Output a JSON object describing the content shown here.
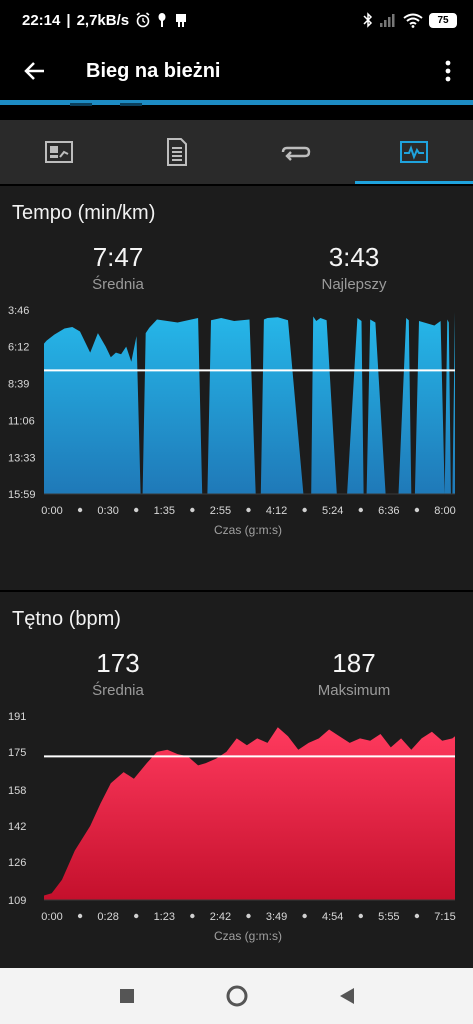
{
  "status_bar": {
    "time": "22:14",
    "net_speed": "2,7kB/s",
    "battery": "75",
    "icons": [
      "alarm-icon",
      "notification-icon",
      "garmin-icon",
      "bluetooth-icon",
      "signal-icon",
      "wifi-icon",
      "battery-icon"
    ]
  },
  "app_bar": {
    "title": "Bieg na bieżni",
    "icons": [
      "back-arrow-icon",
      "more-vert-icon"
    ]
  },
  "tabs": [
    {
      "icon": "stats-card-icon",
      "active": false
    },
    {
      "icon": "details-list-icon",
      "active": false
    },
    {
      "icon": "laps-loop-icon",
      "active": false
    },
    {
      "icon": "charts-icon",
      "active": true
    }
  ],
  "colors": {
    "accent": "#1fa3dd",
    "pace_fill_top": "#26b8ea",
    "pace_fill_bottom": "#1f79b8",
    "hr_fill_top": "#ff3a5e",
    "hr_fill_bottom": "#c4102c"
  },
  "pace": {
    "title": "Tempo (min/km)",
    "avg_value": "7:47",
    "avg_label": "Średnia",
    "best_value": "3:43",
    "best_label": "Najlepszy",
    "xaxis_title": "Czas (g:m:s)"
  },
  "hr": {
    "title": "Tętno (bpm)",
    "avg_value": "173",
    "avg_label": "Średnia",
    "max_value": "187",
    "max_label": "Maksimum",
    "xaxis_title": "Czas (g:m:s)"
  },
  "chart_data": [
    {
      "type": "area",
      "title": "Tempo (min/km)",
      "xlabel": "Czas (g:m:s)",
      "ylabel": "",
      "y_inverted": true,
      "y_ticks": [
        "3:46",
        "6:12",
        "8:39",
        "11:06",
        "13:33",
        "15:59"
      ],
      "y_tick_values": [
        3.77,
        6.2,
        8.65,
        11.1,
        13.55,
        15.98
      ],
      "ylim": [
        3.77,
        15.98
      ],
      "x_ticks": [
        "0:00",
        "0:30",
        "1:35",
        "2:55",
        "4:12",
        "5:24",
        "6:36",
        "8:00"
      ],
      "xlim": [
        0,
        8.0
      ],
      "reference_line": 7.78,
      "x": [
        0.0,
        0.05,
        0.2,
        0.4,
        0.55,
        0.7,
        0.9,
        1.05,
        1.2,
        1.3,
        1.4,
        1.5,
        1.6,
        1.7,
        1.8,
        1.88,
        1.92,
        1.98,
        2.05,
        2.2,
        2.6,
        3.0,
        3.08,
        3.12,
        3.18,
        3.25,
        3.45,
        3.7,
        4.0,
        4.12,
        4.15,
        4.22,
        4.28,
        4.35,
        4.55,
        4.75,
        5.05,
        5.2,
        5.24,
        5.3,
        5.38,
        5.5,
        5.7,
        5.9,
        6.1,
        6.18,
        6.22,
        6.28,
        6.35,
        6.45,
        6.65,
        6.9,
        7.05,
        7.1,
        7.15,
        7.22,
        7.3,
        7.5,
        7.6,
        7.72,
        7.8,
        7.85,
        7.88,
        7.92,
        7.95,
        8.0
      ],
      "y": [
        6.0,
        5.8,
        5.4,
        5.0,
        4.9,
        5.2,
        6.6,
        5.3,
        6.2,
        6.9,
        6.6,
        6.7,
        6.2,
        7.2,
        5.5,
        15.98,
        15.98,
        5.3,
        4.95,
        4.4,
        4.6,
        4.3,
        15.98,
        15.98,
        15.98,
        4.45,
        4.3,
        4.5,
        4.4,
        15.98,
        15.98,
        15.98,
        4.4,
        4.3,
        4.25,
        4.45,
        15.98,
        15.98,
        4.2,
        4.5,
        4.3,
        4.45,
        15.98,
        15.98,
        4.3,
        4.5,
        15.98,
        15.98,
        4.4,
        4.6,
        15.98,
        15.98,
        4.3,
        4.45,
        15.98,
        15.98,
        4.5,
        4.7,
        4.8,
        4.5,
        15.98,
        4.4,
        4.6,
        15.98,
        15.98,
        3.9
      ]
    },
    {
      "type": "area",
      "title": "Tętno (bpm)",
      "xlabel": "Czas (g:m:s)",
      "ylabel": "",
      "y_ticks": [
        "191",
        "175",
        "158",
        "142",
        "126",
        "109"
      ],
      "y_tick_values": [
        191,
        175,
        158,
        142,
        126,
        109
      ],
      "ylim": [
        109,
        191
      ],
      "x_ticks": [
        "0:00",
        "0:28",
        "1:23",
        "2:42",
        "3:49",
        "4:54",
        "5:55",
        "7:15"
      ],
      "xlim": [
        0,
        8.0
      ],
      "reference_line": 173,
      "x": [
        0.0,
        0.15,
        0.35,
        0.6,
        0.9,
        1.1,
        1.3,
        1.55,
        1.75,
        2.0,
        2.2,
        2.4,
        2.6,
        2.8,
        3.0,
        3.15,
        3.35,
        3.55,
        3.75,
        3.95,
        4.15,
        4.35,
        4.55,
        4.75,
        4.95,
        5.15,
        5.35,
        5.55,
        5.75,
        5.95,
        6.15,
        6.35,
        6.55,
        6.75,
        6.95,
        7.15,
        7.35,
        7.55,
        7.75,
        7.95,
        8.0
      ],
      "y": [
        111,
        112,
        118,
        131,
        142,
        152,
        161,
        166,
        163,
        170,
        175,
        176,
        174,
        173,
        169,
        170,
        172,
        175,
        181,
        178,
        181,
        179,
        186,
        182,
        176,
        179,
        181,
        185,
        182,
        179,
        181,
        180,
        183,
        177,
        181,
        176,
        181,
        184,
        180,
        181,
        182
      ]
    }
  ],
  "nav_bar": {
    "icons": [
      "recent-apps-icon",
      "home-icon",
      "back-icon"
    ]
  }
}
